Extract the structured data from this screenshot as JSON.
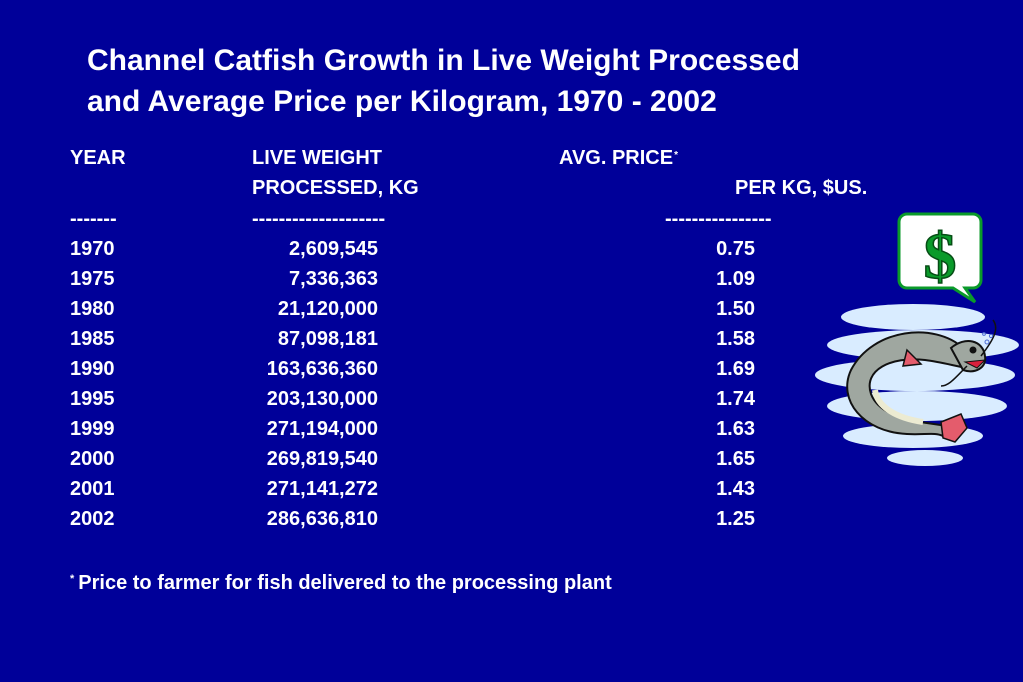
{
  "slide": {
    "title_line1": "Channel Catfish Growth in Live Weight Processed",
    "title_line2": "and Average Price per Kilogram, 1970 - 2002"
  },
  "table": {
    "headers": {
      "year": "YEAR",
      "weight_line1": "LIVE WEIGHT",
      "weight_line2": "PROCESSED, KG",
      "price_line1": "AVG. PRICE",
      "price_marker": "*",
      "price_line2": "PER KG, $US."
    },
    "dashes": {
      "year": "-------",
      "weight": "--------------------",
      "price": "----------------"
    },
    "rows": [
      {
        "year": "1970",
        "weight": "2,609,545",
        "price": "0.75"
      },
      {
        "year": "1975",
        "weight": "7,336,363",
        "price": "1.09"
      },
      {
        "year": "1980",
        "weight": "21,120,000",
        "price": "1.50"
      },
      {
        "year": "1985",
        "weight": "87,098,181",
        "price": "1.58"
      },
      {
        "year": "1990",
        "weight": "163,636,360",
        "price": "1.69"
      },
      {
        "year": "1995",
        "weight": "203,130,000",
        "price": "1.74"
      },
      {
        "year": "1999",
        "weight": "271,194,000",
        "price": "1.63"
      },
      {
        "year": "2000",
        "weight": "269,819,540",
        "price": "1.65"
      },
      {
        "year": "2001",
        "weight": "271,141,272",
        "price": "1.43"
      },
      {
        "year": "2002",
        "weight": "286,636,810",
        "price": "1.25"
      }
    ]
  },
  "footnote": {
    "marker": "*",
    "text": "Price to farmer for fish delivered to the processing plant"
  },
  "clipart": {
    "bubble_symbol": "$",
    "icons": [
      "dollar-speech-bubble-icon",
      "catfish-icon"
    ]
  },
  "colors": {
    "background": "#000099",
    "text": "#ffffff",
    "dollar_green": "#0a9a2a"
  }
}
